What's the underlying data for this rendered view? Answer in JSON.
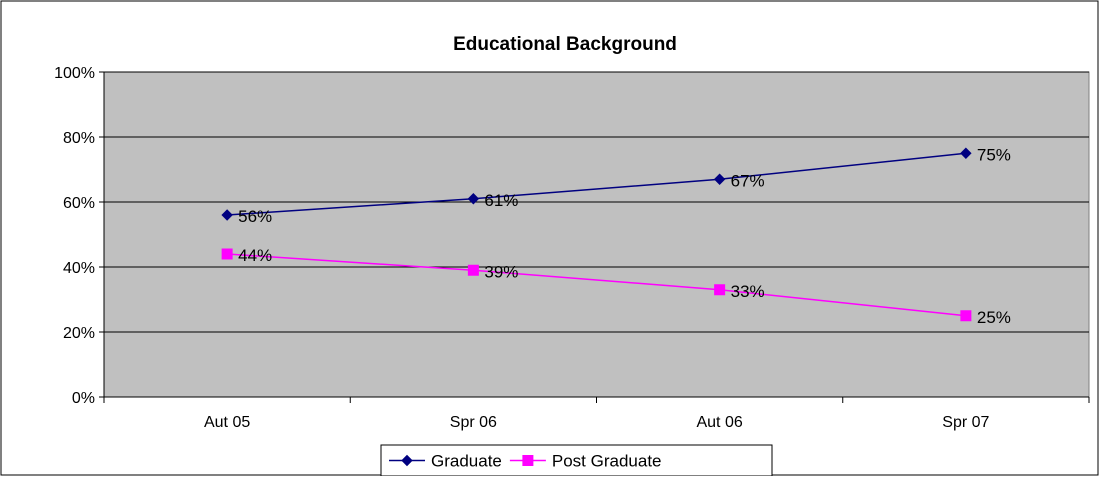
{
  "chart_data": {
    "type": "line",
    "title": "Educational Background",
    "categories": [
      "Aut 05",
      "Spr 06",
      "Aut 06",
      "Spr 07"
    ],
    "series": [
      {
        "name": "Graduate",
        "values": [
          56,
          61,
          67,
          75
        ],
        "labels": [
          "56%",
          "61%",
          "67%",
          "75%"
        ],
        "color": "#000080",
        "marker": "diamond"
      },
      {
        "name": "Post Graduate",
        "values": [
          44,
          39,
          33,
          25
        ],
        "labels": [
          "44%",
          "39%",
          "33%",
          "25%"
        ],
        "color": "#ff00ff",
        "marker": "square"
      }
    ],
    "y_ticks": [
      "0%",
      "20%",
      "40%",
      "60%",
      "80%",
      "100%"
    ],
    "ylim": [
      0,
      100
    ],
    "grid": true,
    "plot_background": "#c0c0c0",
    "legend_position": "bottom"
  }
}
